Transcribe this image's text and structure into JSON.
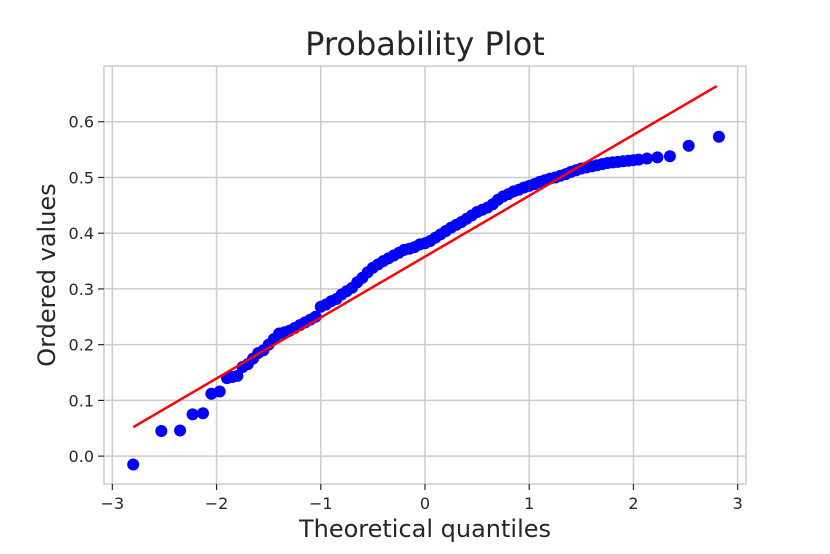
{
  "chart_data": {
    "type": "scatter",
    "title": "Probability Plot",
    "xlabel": "Theoretical quantiles",
    "ylabel": "Ordered values",
    "xlim": [
      -3,
      3
    ],
    "ylim": [
      -0.05,
      0.7
    ],
    "xticks": [
      -3,
      -2,
      -1,
      0,
      1,
      2,
      3
    ],
    "xtick_labels": [
      "−3",
      "−2",
      "−1",
      "0",
      "1",
      "2",
      "3"
    ],
    "yticks": [
      0.0,
      0.1,
      0.2,
      0.3,
      0.4,
      0.5,
      0.6
    ],
    "ytick_labels": [
      "0.0",
      "0.1",
      "0.2",
      "0.3",
      "0.4",
      "0.5",
      "0.6"
    ],
    "grid": true,
    "colors": {
      "points": "#0000ff",
      "fit_line": "#ff0000",
      "grid": "#cccccc",
      "frame": "#cccccc"
    },
    "fit_line": {
      "x": [
        -2.8,
        2.8
      ],
      "y": [
        0.052,
        0.664
      ]
    },
    "series": [
      {
        "x": [
          -2.8,
          -2.53,
          -2.35,
          -2.23,
          -2.13,
          -2.05,
          -1.97,
          -1.9,
          -1.85,
          -1.8,
          -1.75,
          -1.7,
          -1.65,
          -1.6,
          -1.55,
          -1.5,
          -1.45,
          -1.4,
          -1.35,
          -1.3,
          -1.25,
          -1.2,
          -1.15,
          -1.1,
          -1.05,
          -1.0,
          -0.95,
          -0.9,
          -0.85,
          -0.8,
          -0.75,
          -0.7,
          -0.65,
          -0.6,
          -0.55,
          -0.5,
          -0.45,
          -0.4,
          -0.35,
          -0.3,
          -0.25,
          -0.2,
          -0.15,
          -0.1,
          -0.05,
          0.0,
          0.05,
          0.1,
          0.15,
          0.2,
          0.25,
          0.3,
          0.35,
          0.4,
          0.45,
          0.5,
          0.55,
          0.6,
          0.65,
          0.7,
          0.75,
          0.8,
          0.85,
          0.9,
          0.95,
          1.0,
          1.05,
          1.1,
          1.15,
          1.2,
          1.25,
          1.3,
          1.35,
          1.4,
          1.45,
          1.5,
          1.55,
          1.6,
          1.65,
          1.7,
          1.75,
          1.8,
          1.85,
          1.9,
          1.95,
          2.0,
          2.05,
          2.13,
          2.23,
          2.35,
          2.53,
          2.82
        ],
        "y": [
          -0.015,
          0.045,
          0.046,
          0.075,
          0.077,
          0.112,
          0.116,
          0.14,
          0.142,
          0.144,
          0.16,
          0.165,
          0.175,
          0.185,
          0.19,
          0.2,
          0.21,
          0.22,
          0.222,
          0.225,
          0.23,
          0.235,
          0.24,
          0.245,
          0.25,
          0.268,
          0.272,
          0.278,
          0.282,
          0.29,
          0.296,
          0.302,
          0.312,
          0.32,
          0.33,
          0.338,
          0.344,
          0.35,
          0.355,
          0.36,
          0.365,
          0.37,
          0.372,
          0.375,
          0.38,
          0.382,
          0.386,
          0.392,
          0.398,
          0.404,
          0.41,
          0.415,
          0.42,
          0.426,
          0.432,
          0.438,
          0.442,
          0.446,
          0.452,
          0.46,
          0.466,
          0.47,
          0.475,
          0.478,
          0.482,
          0.485,
          0.488,
          0.492,
          0.495,
          0.498,
          0.5,
          0.503,
          0.506,
          0.51,
          0.513,
          0.516,
          0.518,
          0.52,
          0.522,
          0.524,
          0.526,
          0.527,
          0.528,
          0.529,
          0.53,
          0.531,
          0.532,
          0.534,
          0.536,
          0.538,
          0.557,
          0.573
        ]
      }
    ]
  }
}
